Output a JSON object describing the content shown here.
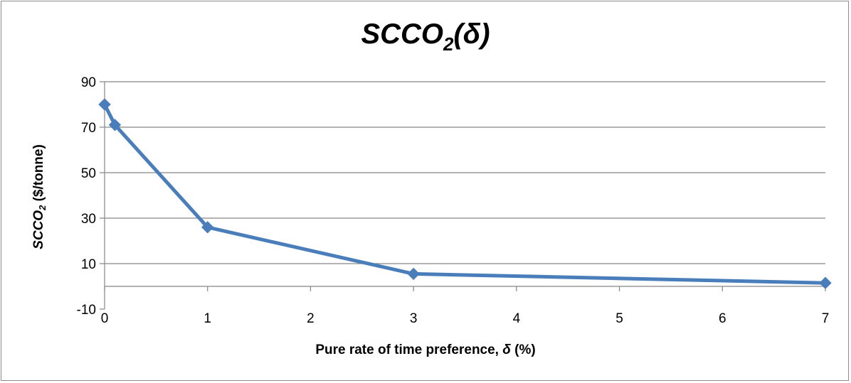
{
  "chart_data": {
    "type": "line",
    "title": {
      "main": "SCCO",
      "sub": "2",
      "suffix": "(δ)"
    },
    "xlabel": {
      "text": "Pure rate of time preference, ",
      "symbol": "δ",
      "unit": " (%)"
    },
    "ylabel": {
      "pre": "SCCO",
      "sub": "2",
      "post": " ($/tonne)"
    },
    "x": [
      0,
      0.1,
      1,
      3,
      7
    ],
    "series": [
      {
        "values": [
          80,
          71,
          26,
          5.5,
          1.5
        ],
        "color": "#4a7ebb"
      }
    ],
    "xlim": [
      0,
      7
    ],
    "ylim": [
      -10,
      90
    ],
    "xticks": [
      0,
      1,
      2,
      3,
      4,
      5,
      6,
      7
    ],
    "yticks": [
      -10,
      10,
      30,
      50,
      70,
      90
    ],
    "xtick_labels": [
      "0",
      "1",
      "2",
      "3",
      "4",
      "5",
      "6",
      "7"
    ],
    "ytick_labels": [
      "-10",
      "10",
      "30",
      "50",
      "70",
      "90"
    ],
    "grid": true,
    "gridlines": [
      0,
      10,
      30,
      50,
      70,
      90
    ],
    "marker": "diamond",
    "x_axis_at": 0,
    "legend": "none",
    "colors": {
      "line": "#4a7ebb",
      "grid": "#868686",
      "frame": "#8c8c8c"
    }
  }
}
